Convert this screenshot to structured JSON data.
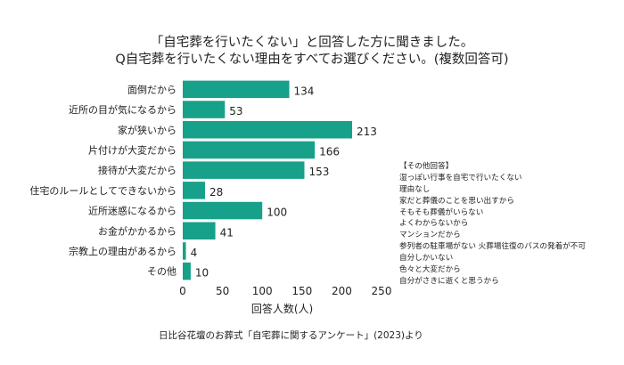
{
  "title": {
    "line1": "「自宅葬を行いたくない」と回答した方に聞きました。",
    "line2": "Q自宅葬を行いたくない理由をすべてお選びください。(複数回答可)"
  },
  "chart_data": {
    "type": "bar",
    "orientation": "horizontal",
    "categories": [
      "面倒だから",
      "近所の目が気になるから",
      "家が狭いから",
      "片付けが大変だから",
      "接待が大変だから",
      "住宅のルールとしてできないから",
      "近所迷惑になるから",
      "お金がかかるから",
      "宗教上の理由があるから",
      "その他"
    ],
    "values": [
      134,
      53,
      213,
      166,
      153,
      28,
      100,
      41,
      4,
      10
    ],
    "xlabel": "回答人数(人)",
    "xlim": [
      0,
      250
    ],
    "xticks": [
      0,
      50,
      100,
      150,
      200,
      250
    ],
    "bar_color": "#17a08a",
    "grid": false
  },
  "other_responses": {
    "heading": "【その他回答】",
    "items": [
      "湿っぽい行事を自宅で行いたくない",
      "理由なし",
      "家だと葬儀のことを思い出すから",
      "そもそも葬儀がいらない",
      "よくわからないから",
      "マンションだから",
      "参列者の駐車場がない 火葬場往復のバスの発着が不可",
      "自分しかいない",
      "色々と大変だから",
      "自分がさきに逝くと思うから"
    ]
  },
  "source": "日比谷花壇のお葬式「自宅葬に関するアンケート」(2023)より"
}
